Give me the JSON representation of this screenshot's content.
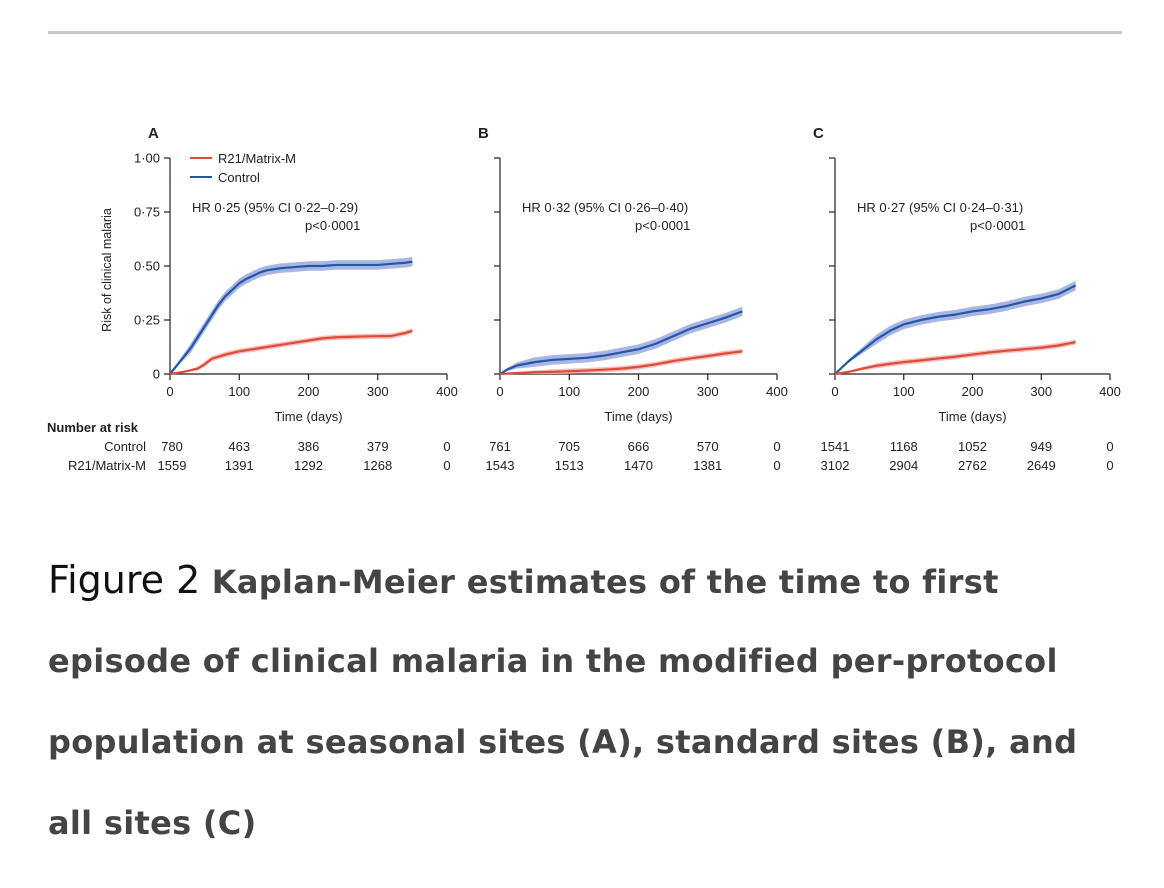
{
  "chart_data": [
    {
      "type": "line",
      "panel_label": "A",
      "ylabel": "Risk of clinical malaria",
      "xlabel": "Time (days)",
      "xlim": [
        0,
        400
      ],
      "ylim": [
        0,
        1.0
      ],
      "x_ticks": [
        "0",
        "100",
        "200",
        "300",
        "400"
      ],
      "y_ticks": [
        "0",
        "0·25",
        "0·50",
        "0·75",
        "1·00"
      ],
      "legend": [
        "R21/Matrix-M",
        "Control"
      ],
      "annotation_hr": "HR 0·25 (95% CI 0·22–0·29)",
      "annotation_p": "p<0·0001",
      "series": [
        {
          "name": "Control",
          "color": "#2357a5",
          "x": [
            0,
            10,
            20,
            30,
            40,
            50,
            60,
            70,
            80,
            90,
            100,
            110,
            120,
            130,
            140,
            150,
            160,
            180,
            200,
            220,
            240,
            260,
            280,
            300,
            320,
            340,
            350
          ],
          "y": [
            0,
            0.04,
            0.08,
            0.12,
            0.17,
            0.22,
            0.27,
            0.32,
            0.36,
            0.39,
            0.42,
            0.44,
            0.455,
            0.47,
            0.48,
            0.485,
            0.49,
            0.495,
            0.5,
            0.5,
            0.505,
            0.505,
            0.505,
            0.505,
            0.51,
            0.515,
            0.52
          ]
        },
        {
          "name": "R21/Matrix-M",
          "color": "#e04a3b",
          "x": [
            0,
            20,
            40,
            50,
            60,
            80,
            100,
            120,
            140,
            160,
            180,
            200,
            220,
            240,
            260,
            280,
            300,
            320,
            340,
            350
          ],
          "y": [
            0,
            0.01,
            0.025,
            0.045,
            0.07,
            0.09,
            0.105,
            0.115,
            0.125,
            0.135,
            0.145,
            0.155,
            0.165,
            0.17,
            0.172,
            0.174,
            0.175,
            0.176,
            0.19,
            0.2
          ]
        }
      ],
      "risk_table": {
        "Control": [
          "780",
          "463",
          "386",
          "379",
          "0"
        ],
        "R21/Matrix-M": [
          "1559",
          "1391",
          "1292",
          "1268",
          "0"
        ]
      }
    },
    {
      "type": "line",
      "panel_label": "B",
      "xlabel": "Time (days)",
      "xlim": [
        0,
        400
      ],
      "ylim": [
        0,
        1.0
      ],
      "x_ticks": [
        "0",
        "100",
        "200",
        "300",
        "400"
      ],
      "annotation_hr": "HR 0·32 (95% CI 0·26–0·40)",
      "annotation_p": "p<0·0001",
      "series": [
        {
          "name": "Control",
          "color": "#2357a5",
          "x": [
            0,
            10,
            25,
            50,
            75,
            100,
            125,
            150,
            175,
            200,
            225,
            250,
            275,
            300,
            325,
            350
          ],
          "y": [
            0,
            0.02,
            0.04,
            0.055,
            0.065,
            0.07,
            0.075,
            0.085,
            0.1,
            0.115,
            0.14,
            0.175,
            0.21,
            0.235,
            0.26,
            0.29
          ]
        },
        {
          "name": "R21/Matrix-M",
          "color": "#e04a3b",
          "x": [
            0,
            25,
            50,
            75,
            100,
            125,
            150,
            175,
            200,
            225,
            250,
            275,
            300,
            325,
            350
          ],
          "y": [
            0,
            0.005,
            0.008,
            0.01,
            0.013,
            0.016,
            0.02,
            0.025,
            0.033,
            0.045,
            0.06,
            0.072,
            0.083,
            0.095,
            0.105
          ]
        }
      ],
      "risk_table": {
        "Control": [
          "761",
          "705",
          "666",
          "570",
          "0"
        ],
        "R21/Matrix-M": [
          "1543",
          "1513",
          "1470",
          "1381",
          "0"
        ]
      }
    },
    {
      "type": "line",
      "panel_label": "C",
      "xlabel": "Time (days)",
      "xlim": [
        0,
        400
      ],
      "ylim": [
        0,
        1.0
      ],
      "x_ticks": [
        "0",
        "100",
        "200",
        "300",
        "400"
      ],
      "annotation_hr": "HR 0·27 (95% CI 0·24–0·31)",
      "annotation_p": "p<0·0001",
      "series": [
        {
          "name": "Control",
          "color": "#2357a5",
          "x": [
            0,
            20,
            40,
            60,
            80,
            100,
            125,
            150,
            175,
            200,
            225,
            250,
            275,
            300,
            325,
            350
          ],
          "y": [
            0,
            0.06,
            0.11,
            0.16,
            0.2,
            0.23,
            0.25,
            0.265,
            0.275,
            0.29,
            0.3,
            0.315,
            0.335,
            0.35,
            0.37,
            0.41
          ]
        },
        {
          "name": "R21/Matrix-M",
          "color": "#e04a3b",
          "x": [
            0,
            20,
            40,
            60,
            80,
            100,
            125,
            150,
            175,
            200,
            225,
            250,
            275,
            300,
            325,
            350
          ],
          "y": [
            0,
            0.01,
            0.025,
            0.038,
            0.047,
            0.055,
            0.063,
            0.072,
            0.08,
            0.09,
            0.1,
            0.108,
            0.115,
            0.122,
            0.132,
            0.148
          ]
        }
      ],
      "risk_table": {
        "Control": [
          "1541",
          "1168",
          "1052",
          "949",
          "0"
        ],
        "R21/Matrix-M": [
          "3102",
          "2904",
          "2762",
          "2649",
          "0"
        ]
      }
    }
  ],
  "risk_table_header": "Number at risk",
  "risk_table_rows": [
    "Control",
    "R21/Matrix-M"
  ],
  "caption": {
    "label": "Figure 2",
    "lines": [
      "Kaplan-Meier estimates of the time to first",
      "episode of clinical malaria in the modified per-protocol",
      "population at seasonal sites (A), standard sites (B), and",
      "all sites (C)"
    ]
  }
}
